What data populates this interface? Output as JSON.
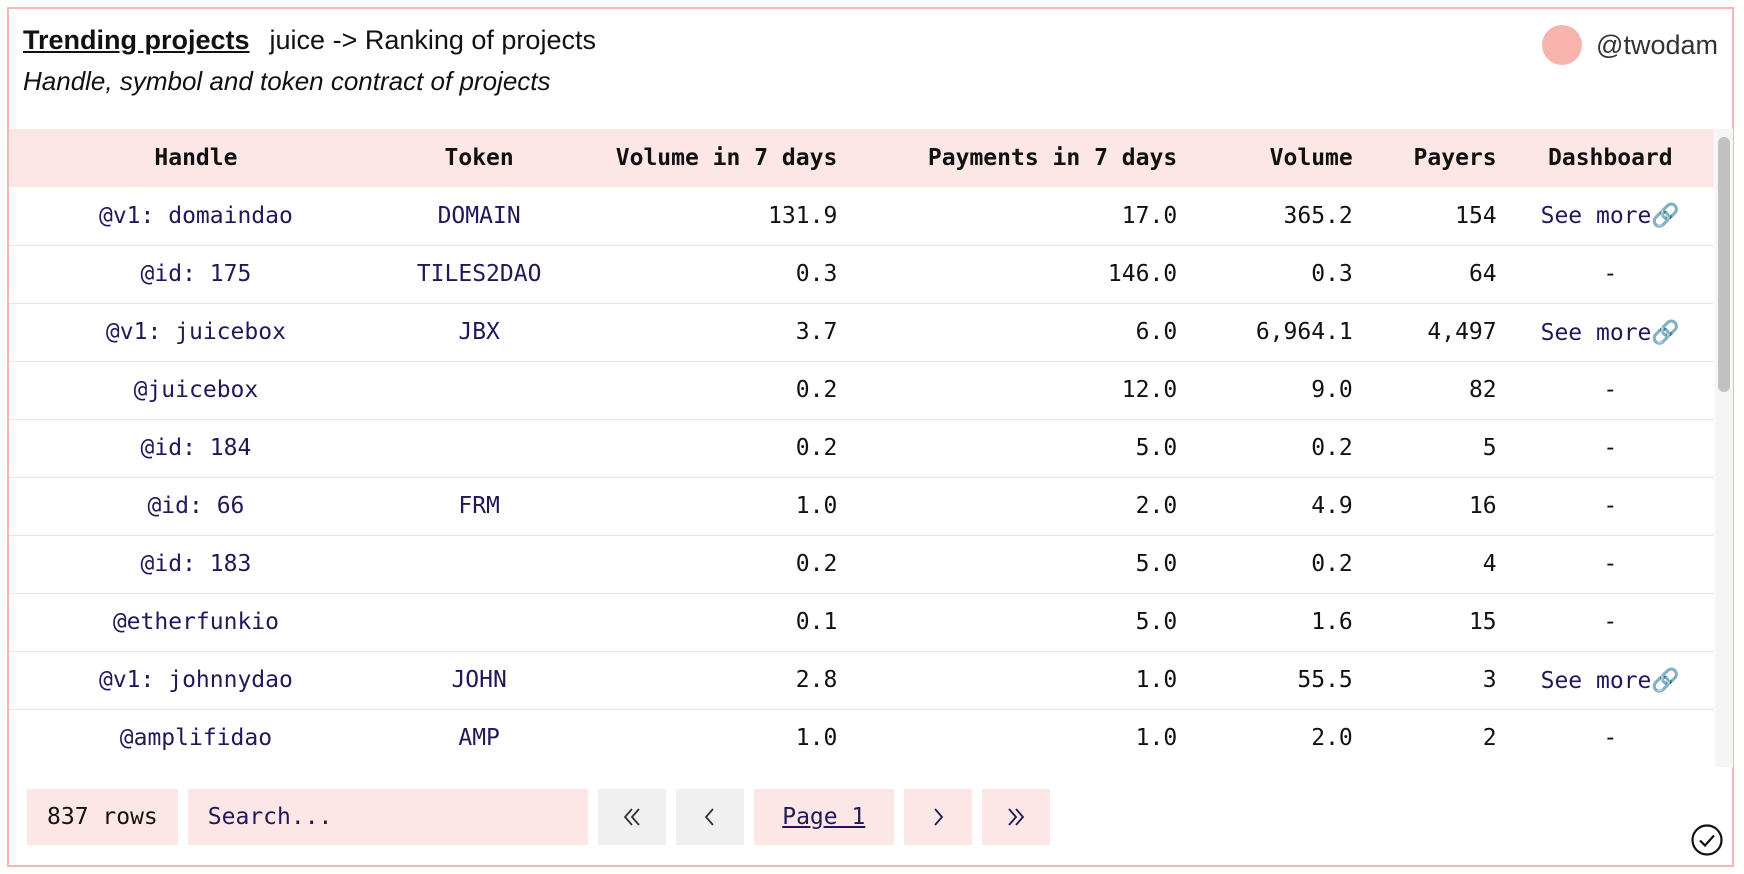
{
  "header": {
    "title_link": "Trending projects",
    "breadcrumb": "juice -> Ranking of projects",
    "subtitle": "Handle, symbol and token contract of projects",
    "username": "@twodam",
    "avatar_color": "#f8b4ac"
  },
  "table": {
    "columns": [
      "Handle",
      "Token",
      "Volume in 7 days",
      "Payments in 7 days",
      "Volume",
      "Payers",
      "Dashboard"
    ],
    "rows": [
      {
        "handle": "@v1: domaindao",
        "token": "DOMAIN",
        "vol7": "131.9",
        "pay7": "17.0",
        "volume": "365.2",
        "payers": "154",
        "dashboard": "See more🔗"
      },
      {
        "handle": "@id: 175",
        "token": "TILES2DAO",
        "vol7": "0.3",
        "pay7": "146.0",
        "volume": "0.3",
        "payers": "64",
        "dashboard": "-"
      },
      {
        "handle": "@v1: juicebox",
        "token": "JBX",
        "vol7": "3.7",
        "pay7": "6.0",
        "volume": "6,964.1",
        "payers": "4,497",
        "dashboard": "See more🔗"
      },
      {
        "handle": "@juicebox",
        "token": "",
        "vol7": "0.2",
        "pay7": "12.0",
        "volume": "9.0",
        "payers": "82",
        "dashboard": "-"
      },
      {
        "handle": "@id: 184",
        "token": "",
        "vol7": "0.2",
        "pay7": "5.0",
        "volume": "0.2",
        "payers": "5",
        "dashboard": "-"
      },
      {
        "handle": "@id: 66",
        "token": "FRM",
        "vol7": "1.0",
        "pay7": "2.0",
        "volume": "4.9",
        "payers": "16",
        "dashboard": "-"
      },
      {
        "handle": "@id: 183",
        "token": "",
        "vol7": "0.2",
        "pay7": "5.0",
        "volume": "0.2",
        "payers": "4",
        "dashboard": "-"
      },
      {
        "handle": "@etherfunkio",
        "token": "",
        "vol7": "0.1",
        "pay7": "5.0",
        "volume": "1.6",
        "payers": "15",
        "dashboard": "-"
      },
      {
        "handle": "@v1: johnnydao",
        "token": "JOHN",
        "vol7": "2.8",
        "pay7": "1.0",
        "volume": "55.5",
        "payers": "3",
        "dashboard": "See more🔗"
      },
      {
        "handle": "@amplifidao",
        "token": "AMP",
        "vol7": "1.0",
        "pay7": "1.0",
        "volume": "2.0",
        "payers": "2",
        "dashboard": "-"
      }
    ]
  },
  "footer": {
    "rows_count": "837 rows",
    "search_placeholder": "Search...",
    "first_icon": "double-chevron-left-icon",
    "prev_icon": "chevron-left-icon",
    "page_label": "Page 1",
    "next_icon": "chevron-right-icon",
    "last_icon": "double-chevron-right-icon"
  },
  "colors": {
    "accent_pink": "#fde6e6",
    "border_pink": "#f7b6b1",
    "link_navy": "#1f1a57"
  }
}
